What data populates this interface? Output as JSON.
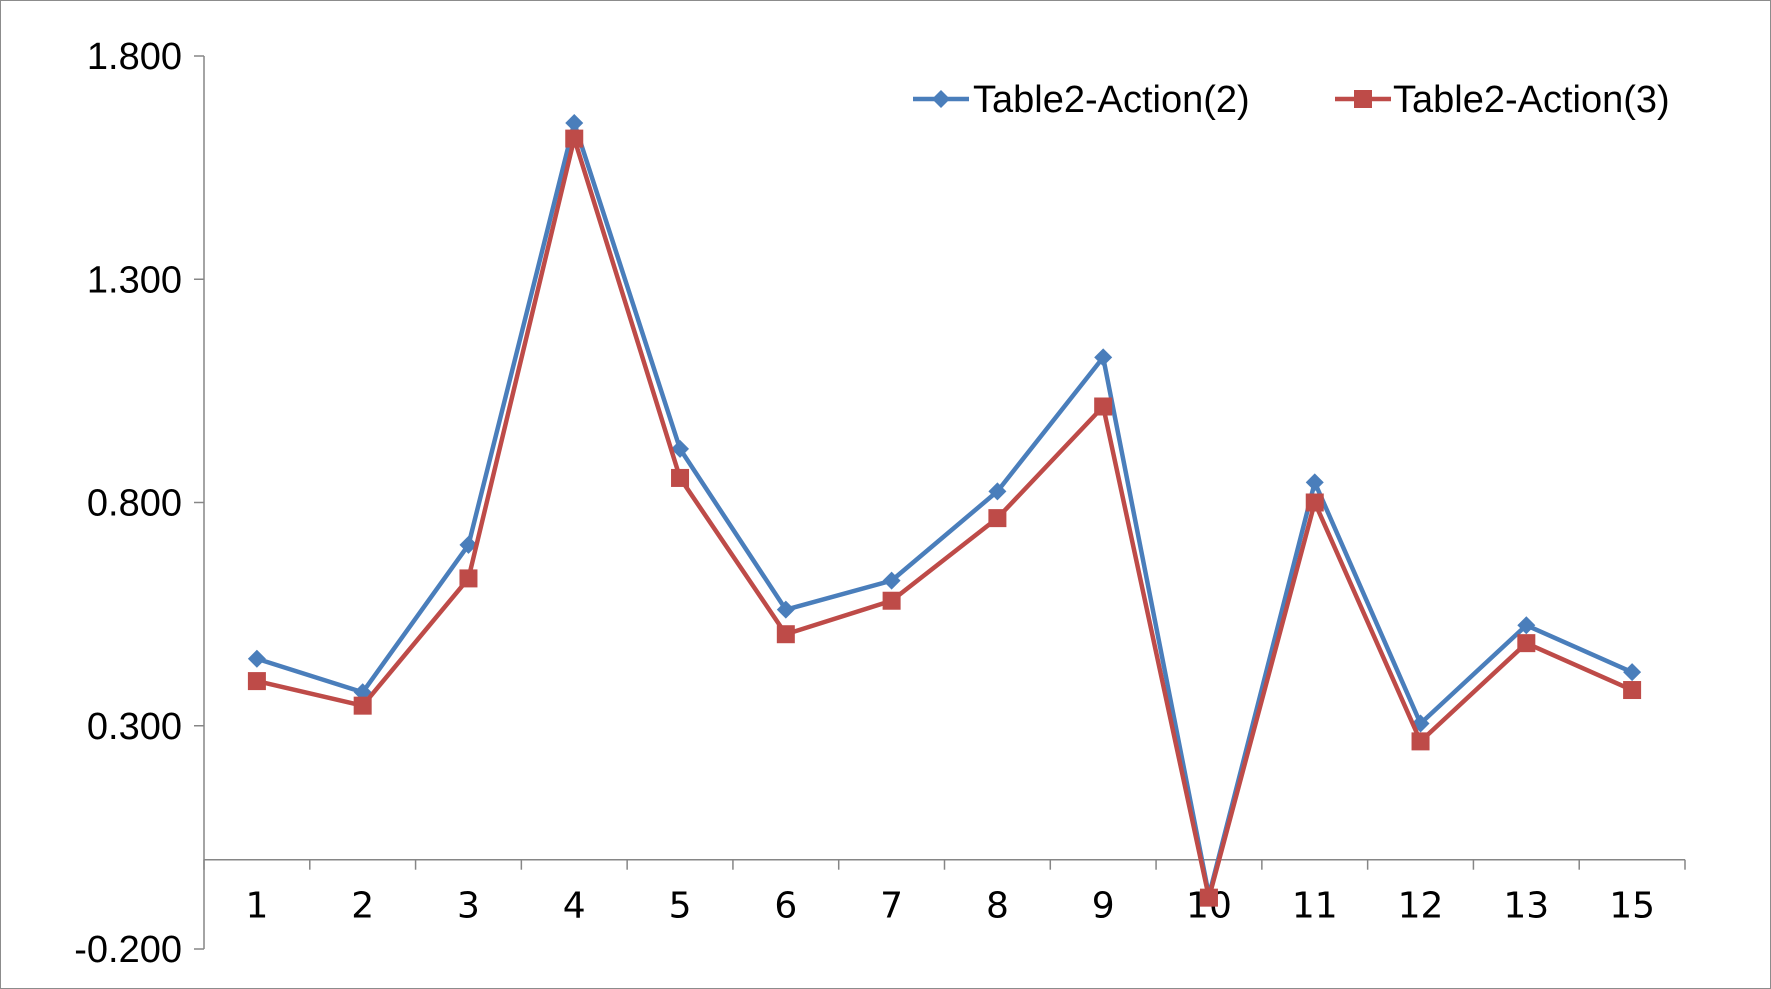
{
  "chart_data": {
    "type": "line",
    "title": "",
    "xlabel": "",
    "ylabel": "",
    "categories": [
      "1",
      "2",
      "3",
      "4",
      "5",
      "6",
      "7",
      "8",
      "9",
      "10",
      "11",
      "12",
      "13",
      "15"
    ],
    "ylim": [
      -0.2,
      1.8
    ],
    "yticks": [
      -0.2,
      0.3,
      0.8,
      1.3,
      1.8
    ],
    "ytick_labels": [
      "-0.200",
      "0.300",
      "0.800",
      "1.300",
      "1.800"
    ],
    "grid": false,
    "legend_position": "top-right",
    "series": [
      {
        "name": "Table2-Action(2)",
        "color": "#4a7ebb",
        "marker": "diamond",
        "values": [
          0.45,
          0.375,
          0.705,
          1.65,
          0.92,
          0.56,
          0.625,
          0.825,
          1.125,
          -0.08,
          0.845,
          0.305,
          0.525,
          0.42
        ]
      },
      {
        "name": "Table2-Action(3)",
        "color": "#be4b48",
        "marker": "square",
        "values": [
          0.4,
          0.345,
          0.63,
          1.615,
          0.855,
          0.505,
          0.58,
          0.765,
          1.015,
          -0.085,
          0.8,
          0.265,
          0.485,
          0.38
        ]
      }
    ]
  }
}
